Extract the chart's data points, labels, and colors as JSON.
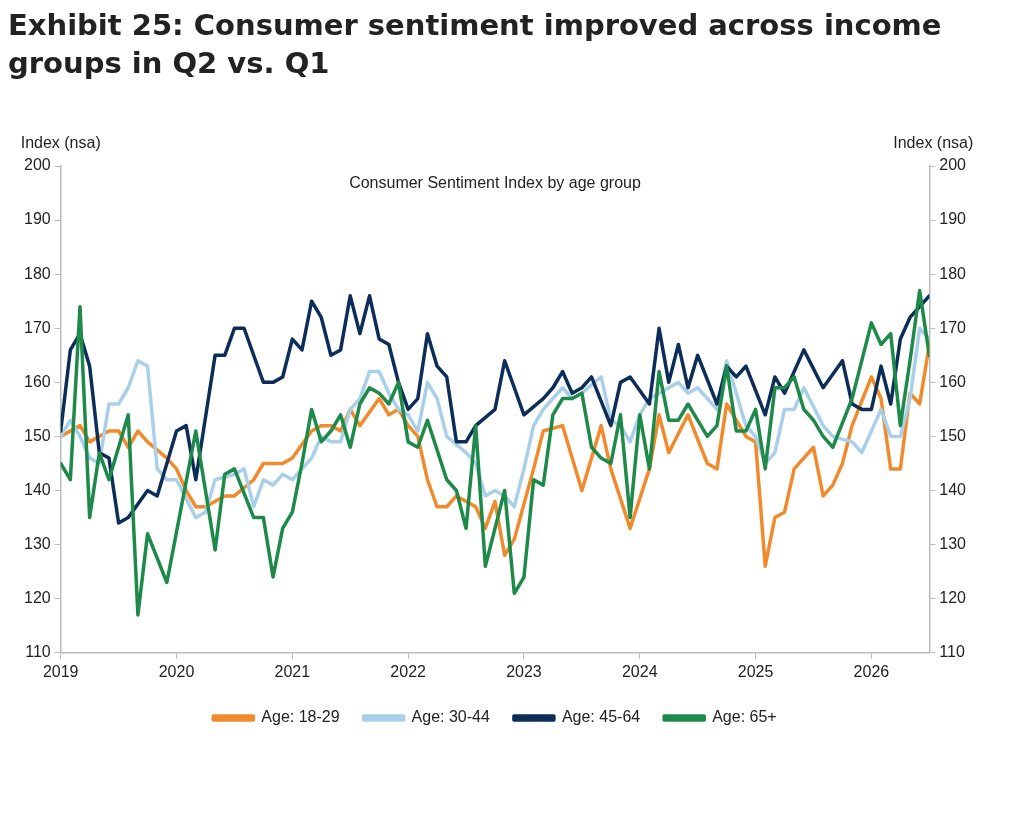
{
  "chart_data": {
    "type": "line",
    "title": "Exhibit 25: Consumer sentiment improved across income groups in Q2 vs. Q1",
    "subtitle": "Consumer Sentiment Index by age group",
    "ylabel": "Index (nsa)",
    "y2label": "Index (nsa)",
    "xlim": [
      "2019-01",
      "2026-07"
    ],
    "xticks": [
      "2019",
      "2020",
      "2021",
      "2022",
      "2023",
      "2024",
      "2025",
      "2026"
    ],
    "ylim": [
      110,
      200
    ],
    "yticks": [
      110,
      120,
      130,
      140,
      150,
      160,
      170,
      180,
      190,
      200
    ],
    "y2lim": [
      110,
      200
    ],
    "y2ticks": [
      110,
      120,
      130,
      140,
      150,
      160,
      170,
      180,
      190,
      200
    ],
    "grid": false,
    "legend": "bottom",
    "marker": "none",
    "line_style": "solid",
    "series": [
      {
        "name": "Age: 18-29",
        "color": "#f08a2c",
        "x": [
          "2019-01",
          "2019-02",
          "2019-03",
          "2019-04",
          "2019-06",
          "2019-07",
          "2019-08",
          "2019-09",
          "2019-10",
          "2019-12",
          "2020-01",
          "2020-02",
          "2020-03",
          "2020-04",
          "2020-06",
          "2020-07",
          "2020-09",
          "2020-10",
          "2020-12",
          "2021-01",
          "2021-03",
          "2021-04",
          "2021-05",
          "2021-06",
          "2021-07",
          "2021-08",
          "2021-10",
          "2021-11",
          "2021-12",
          "2022-01",
          "2022-02",
          "2022-03",
          "2022-04",
          "2022-05",
          "2022-06",
          "2022-08",
          "2022-09",
          "2022-10",
          "2022-11",
          "2022-12",
          "2023-02",
          "2023-03",
          "2023-05",
          "2023-07",
          "2023-09",
          "2023-10",
          "2023-12",
          "2024-02",
          "2024-03",
          "2024-04",
          "2024-06",
          "2024-08",
          "2024-09",
          "2024-10",
          "2024-12",
          "2025-01",
          "2025-02",
          "2025-03",
          "2025-04",
          "2025-05",
          "2025-07",
          "2025-08",
          "2025-09",
          "2025-10",
          "2025-11",
          "2026-01",
          "2026-02",
          "2026-03",
          "2026-04",
          "2026-05",
          "2026-06",
          "2026-07"
        ],
        "values": [
          150,
          151,
          152,
          149,
          151,
          151,
          148,
          151,
          149,
          146,
          144,
          140,
          137,
          137,
          139,
          139,
          142,
          145,
          145,
          146,
          151,
          152,
          152,
          151,
          155,
          152,
          157,
          154,
          155,
          152,
          150,
          142,
          137,
          137,
          139,
          137,
          133,
          138,
          128,
          131,
          144,
          151,
          152,
          140,
          152,
          144,
          133,
          144,
          154,
          147,
          154,
          145,
          144,
          156,
          150,
          149,
          126,
          135,
          136,
          144,
          148,
          139,
          141,
          145,
          152,
          161,
          157,
          144,
          144,
          158,
          156,
          167
        ]
      },
      {
        "name": "Age: 30-44",
        "color": "#a9cfe9",
        "x": [
          "2019-01",
          "2019-02",
          "2019-03",
          "2019-04",
          "2019-05",
          "2019-06",
          "2019-07",
          "2019-08",
          "2019-09",
          "2019-10",
          "2019-11",
          "2019-12",
          "2020-01",
          "2020-03",
          "2020-04",
          "2020-05",
          "2020-07",
          "2020-08",
          "2020-09",
          "2020-10",
          "2020-11",
          "2020-12",
          "2021-01",
          "2021-03",
          "2021-04",
          "2021-05",
          "2021-06",
          "2021-07",
          "2021-08",
          "2021-09",
          "2021-10",
          "2021-11",
          "2021-12",
          "2022-01",
          "2022-02",
          "2022-03",
          "2022-04",
          "2022-05",
          "2022-07",
          "2022-08",
          "2022-09",
          "2022-10",
          "2022-11",
          "2022-12",
          "2023-01",
          "2023-02",
          "2023-03",
          "2023-05",
          "2023-06",
          "2023-07",
          "2023-09",
          "2023-10",
          "2023-11",
          "2023-12",
          "2024-01",
          "2024-02",
          "2024-03",
          "2024-05",
          "2024-06",
          "2024-07",
          "2024-09",
          "2024-10",
          "2024-12",
          "2025-01",
          "2025-02",
          "2025-03",
          "2025-04",
          "2025-05",
          "2025-06",
          "2025-08",
          "2025-09",
          "2025-11",
          "2025-12",
          "2026-02",
          "2026-03",
          "2026-04",
          "2026-05",
          "2026-06",
          "2026-07"
        ],
        "values": [
          150,
          153,
          150,
          146,
          145,
          156,
          156,
          159,
          164,
          163,
          144,
          142,
          142,
          135,
          136,
          142,
          143,
          144,
          137,
          142,
          141,
          143,
          142,
          146,
          150,
          149,
          149,
          155,
          157,
          162,
          162,
          158,
          155,
          154,
          151,
          160,
          157,
          150,
          147,
          145,
          139,
          140,
          139,
          137,
          144,
          152,
          155,
          159,
          157,
          158,
          161,
          153,
          152,
          149,
          154,
          157,
          158,
          160,
          158,
          159,
          155,
          164,
          152,
          150,
          145,
          147,
          155,
          155,
          159,
          152,
          150,
          149,
          147,
          155,
          150,
          150,
          157,
          170,
          168
        ]
      },
      {
        "name": "Age: 45-64",
        "color": "#0c2d57",
        "x": [
          "2019-01",
          "2019-02",
          "2019-03",
          "2019-04",
          "2019-05",
          "2019-06",
          "2019-07",
          "2019-08",
          "2019-10",
          "2019-11",
          "2020-01",
          "2020-02",
          "2020-03",
          "2020-05",
          "2020-06",
          "2020-07",
          "2020-08",
          "2020-10",
          "2020-11",
          "2020-12",
          "2021-01",
          "2021-02",
          "2021-03",
          "2021-04",
          "2021-05",
          "2021-06",
          "2021-07",
          "2021-08",
          "2021-09",
          "2021-10",
          "2021-11",
          "2021-12",
          "2022-01",
          "2022-02",
          "2022-03",
          "2022-04",
          "2022-05",
          "2022-06",
          "2022-07",
          "2022-08",
          "2022-10",
          "2022-11",
          "2022-12",
          "2023-01",
          "2023-03",
          "2023-04",
          "2023-05",
          "2023-06",
          "2023-07",
          "2023-08",
          "2023-10",
          "2023-11",
          "2023-12",
          "2024-02",
          "2024-03",
          "2024-04",
          "2024-05",
          "2024-06",
          "2024-07",
          "2024-09",
          "2024-10",
          "2024-11",
          "2024-12",
          "2025-02",
          "2025-03",
          "2025-04",
          "2025-06",
          "2025-08",
          "2025-10",
          "2025-11",
          "2025-12",
          "2026-01",
          "2026-02",
          "2026-03",
          "2026-04",
          "2026-05",
          "2026-07"
        ],
        "values": [
          151,
          166,
          169,
          163,
          147,
          146,
          134,
          135,
          140,
          139,
          151,
          152,
          142,
          165,
          165,
          170,
          170,
          160,
          160,
          161,
          168,
          166,
          175,
          172,
          165,
          166,
          176,
          169,
          176,
          168,
          167,
          160,
          155,
          157,
          169,
          163,
          161,
          149,
          149,
          152,
          155,
          164,
          159,
          154,
          157,
          159,
          162,
          158,
          159,
          161,
          152,
          160,
          161,
          156,
          170,
          160,
          167,
          159,
          165,
          156,
          163,
          161,
          163,
          154,
          161,
          158,
          166,
          159,
          164,
          156,
          155,
          155,
          163,
          156,
          168,
          172,
          176
        ]
      },
      {
        "name": "Age: 65+",
        "color": "#1e8a4a",
        "x": [
          "2019-01",
          "2019-02",
          "2019-03",
          "2019-04",
          "2019-05",
          "2019-06",
          "2019-08",
          "2019-09",
          "2019-10",
          "2019-12",
          "2020-03",
          "2020-05",
          "2020-06",
          "2020-07",
          "2020-09",
          "2020-10",
          "2020-11",
          "2020-12",
          "2021-01",
          "2021-02",
          "2021-03",
          "2021-04",
          "2021-05",
          "2021-06",
          "2021-07",
          "2021-08",
          "2021-09",
          "2021-10",
          "2021-11",
          "2021-12",
          "2022-01",
          "2022-02",
          "2022-03",
          "2022-05",
          "2022-06",
          "2022-07",
          "2022-08",
          "2022-09",
          "2022-11",
          "2022-12",
          "2023-01",
          "2023-02",
          "2023-03",
          "2023-04",
          "2023-05",
          "2023-06",
          "2023-07",
          "2023-08",
          "2023-09",
          "2023-10",
          "2023-11",
          "2023-12",
          "2024-01",
          "2024-02",
          "2024-03",
          "2024-04",
          "2024-05",
          "2024-06",
          "2024-07",
          "2024-08",
          "2024-09",
          "2024-10",
          "2024-11",
          "2024-12",
          "2025-01",
          "2025-02",
          "2025-03",
          "2025-04",
          "2025-05",
          "2025-06",
          "2025-07",
          "2025-08",
          "2025-09",
          "2025-11",
          "2026-01",
          "2026-02",
          "2026-03",
          "2026-04",
          "2026-05",
          "2026-06",
          "2026-07"
        ],
        "values": [
          145,
          142,
          174,
          135,
          147,
          142,
          154,
          117,
          132,
          123,
          151,
          129,
          143,
          144,
          135,
          135,
          124,
          133,
          136,
          145,
          155,
          149,
          151,
          154,
          148,
          156,
          159,
          158,
          156,
          160,
          149,
          148,
          153,
          142,
          140,
          133,
          152,
          126,
          140,
          121,
          124,
          142,
          141,
          154,
          157,
          157,
          158,
          148,
          146,
          145,
          154,
          135,
          154,
          144,
          162,
          153,
          153,
          156,
          153,
          150,
          152,
          163,
          151,
          151,
          155,
          144,
          159,
          159,
          161,
          155,
          153,
          150,
          148,
          157,
          171,
          167,
          169,
          152,
          164,
          177,
          165
        ]
      }
    ]
  }
}
